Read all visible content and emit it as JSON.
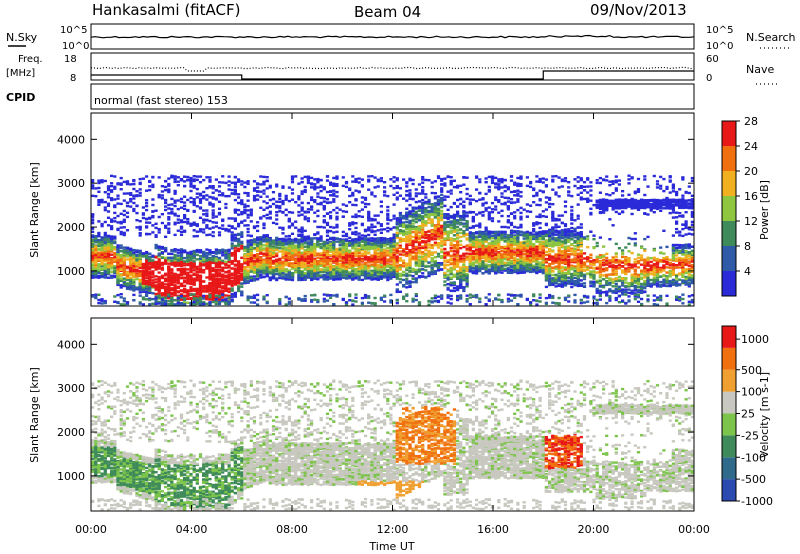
{
  "header": {
    "title": "Hankasalmi (fitACF)",
    "beam": "Beam 04",
    "date": "09/Nov/2013"
  },
  "strips": {
    "nsky_label": "N.Sky",
    "nsearch_label": "N.Search",
    "noise_ticks_left": [
      "10^5",
      "10^0"
    ],
    "noise_ticks_right": [
      "10^5",
      "10^0"
    ],
    "freq_label_top": "Freq.",
    "freq_label_unit": "[MHz]",
    "freq_ticks": [
      "18",
      "8"
    ],
    "nave_label": "Nave",
    "nave_ticks": [
      "60",
      "0"
    ],
    "cpid_label": "CPID",
    "cpid_text": "normal (fast stereo) 153"
  },
  "chart_data": [
    {
      "type": "heatmap",
      "panel": "power",
      "ylabel": "Slant Range [km]",
      "ylim": [
        200,
        4600
      ],
      "yticks": [
        1000,
        2000,
        3000,
        4000
      ],
      "xlim": [
        "00:00",
        "24:00"
      ],
      "colorbar": {
        "label": "Power [dB]",
        "ticks": [
          "4",
          "8",
          "12",
          "16",
          "20",
          "24",
          "28"
        ],
        "colors": [
          "#2a2ad8",
          "#2f5aa8",
          "#3f8a5a",
          "#8ec63f",
          "#f0b020",
          "#f07010",
          "#e81818"
        ]
      }
    },
    {
      "type": "heatmap",
      "panel": "velocity",
      "ylabel": "Slant Range [km]",
      "ylim": [
        200,
        4600
      ],
      "yticks": [
        1000,
        2000,
        3000,
        4000
      ],
      "xlim": [
        "00:00",
        "24:00"
      ],
      "xticks": [
        "00:00",
        "04:00",
        "08:00",
        "12:00",
        "16:00",
        "20:00",
        "00:00"
      ],
      "xlabel": "Time UT",
      "colorbar": {
        "label": "Velocity [m s-1]",
        "ticks": [
          "1000",
          "500",
          "100",
          "25",
          "-25",
          "-100",
          "-500",
          "-1000"
        ],
        "colors": [
          "#2a4ab0",
          "#2f6a8a",
          "#3f8a5a",
          "#7cc44a",
          "#c8c8c0",
          "#f0a030",
          "#f07010",
          "#e81818"
        ]
      }
    }
  ]
}
